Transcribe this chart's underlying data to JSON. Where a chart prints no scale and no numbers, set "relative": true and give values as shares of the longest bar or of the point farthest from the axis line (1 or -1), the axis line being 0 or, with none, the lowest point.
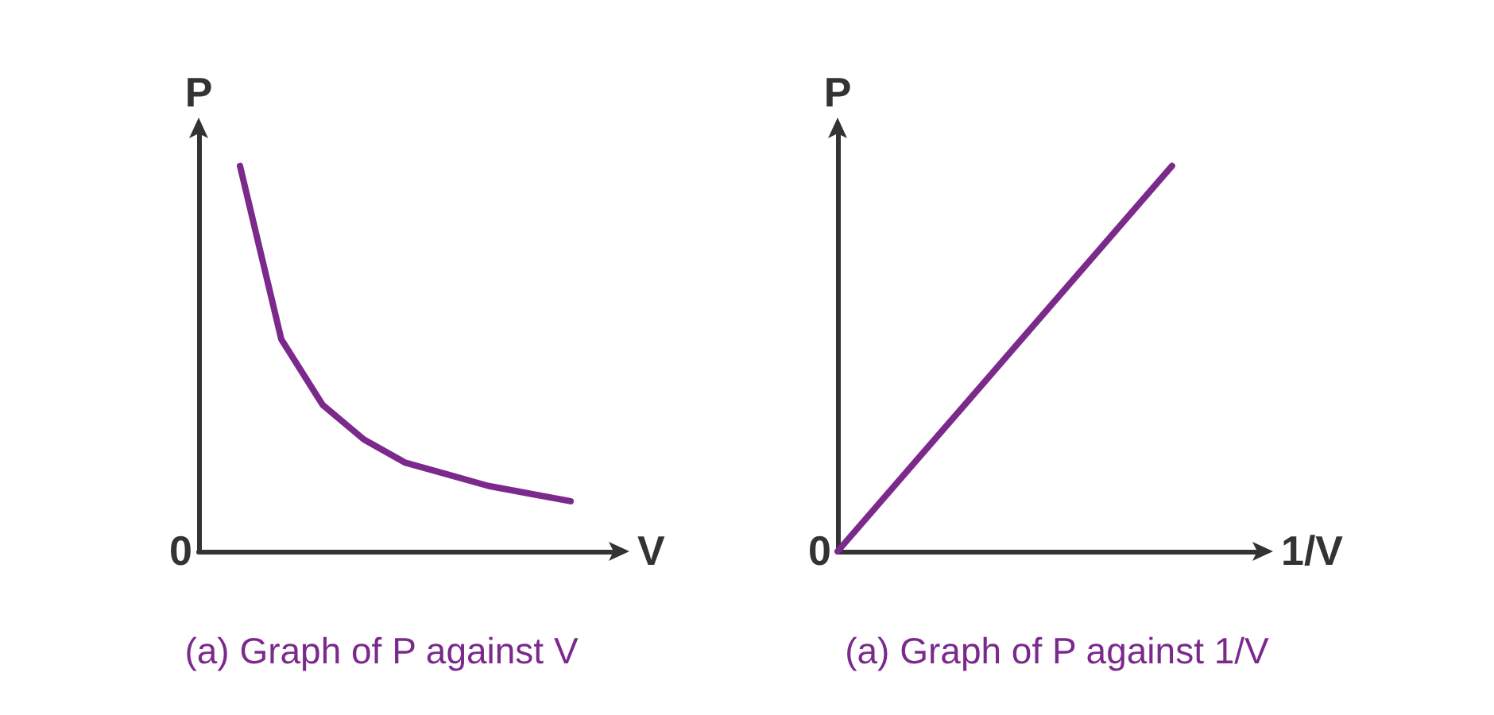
{
  "chart_data": [
    {
      "type": "line",
      "title": "(a) Graph of P against V",
      "xlabel": "V",
      "ylabel": "P",
      "relative": true,
      "annotations": [
        "0"
      ],
      "grid": false,
      "categories": [
        null,
        null,
        null,
        null,
        null,
        null,
        null,
        null,
        null,
        null,
        null
      ],
      "series": [
        {
          "color": "#7b2a8c",
          "values": [
            null,
            1,
            0.55,
            0.38,
            0.29,
            0.23,
            0.2,
            0.17,
            0.15,
            0.13,
            null
          ]
        }
      ]
    },
    {
      "type": "line",
      "title": "(a) Graph of P against 1/V",
      "xlabel": "1/V",
      "ylabel": "P",
      "relative": true,
      "annotations": [
        "0"
      ],
      "grid": false,
      "categories": [
        null,
        null,
        null,
        null,
        null,
        null
      ],
      "series": [
        {
          "color": "#7b2a8c",
          "values": [
            0,
            0.25,
            0.5,
            0.75,
            1,
            null
          ]
        }
      ]
    }
  ]
}
